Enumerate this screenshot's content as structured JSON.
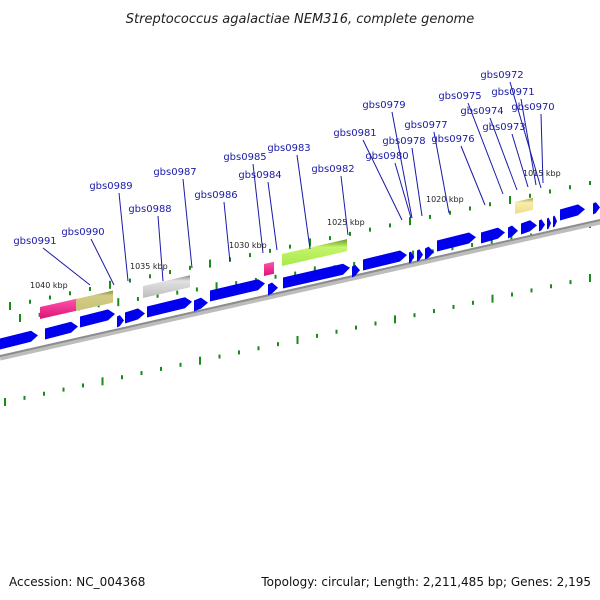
{
  "title": "Streptococcus agalactiae NEM316, complete genome",
  "footer": {
    "accession": "Accession: NC_004368",
    "topology": "Topology: circular; Length: 2,211,485 bp; Genes: 2,195"
  },
  "colors": {
    "gene_arrow": "#0000ee",
    "backbone": "#8c8c8c",
    "tick": "#1a8a1a",
    "label": "#1a1aa8",
    "leader": "#1a1aa8"
  },
  "kbp_labels": [
    "1015 kbp",
    "1020 kbp",
    "1025 kbp",
    "1030 kbp",
    "1035 kbp",
    "1040 kbp"
  ],
  "gene_labels": [
    "gbs0972",
    "gbs0971",
    "gbs0970",
    "gbs0975",
    "gbs0974",
    "gbs0973",
    "gbs0979",
    "gbs0977",
    "gbs0976",
    "gbs0981",
    "gbs0978",
    "gbs0980",
    "gbs0983",
    "gbs0985",
    "gbs0984",
    "gbs0982",
    "gbs0987",
    "gbs0986",
    "gbs0989",
    "gbs0988",
    "gbs0990",
    "gbs0991"
  ],
  "features": [
    {
      "name": "magenta-block",
      "color": "#ee2288"
    },
    {
      "name": "olive-block",
      "color": "#bdb76b"
    },
    {
      "name": "gray-block",
      "color": "#b8b8b8"
    },
    {
      "name": "magenta-small-block",
      "color": "#ee2288"
    },
    {
      "name": "lime-block",
      "color": "#a8e84a"
    },
    {
      "name": "khaki-block",
      "color": "#eedd88"
    }
  ]
}
